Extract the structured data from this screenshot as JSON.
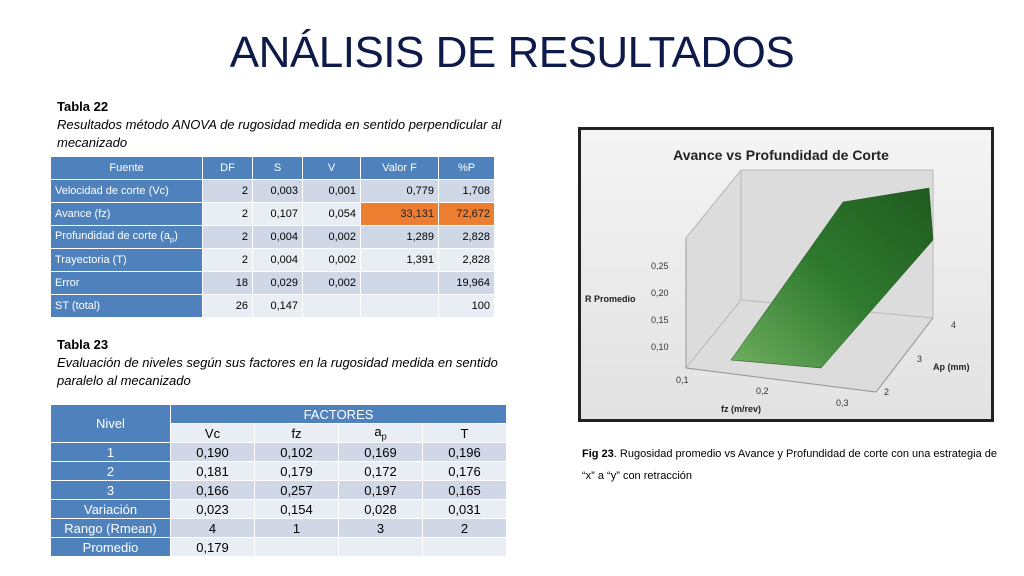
{
  "title": "ANÁLISIS DE RESULTADOS",
  "table22": {
    "label": "Tabla 22",
    "description": "Resultados método ANOVA de rugosidad medida en sentido perpendicular al mecanizado",
    "headers": [
      "Fuente",
      "DF",
      "S",
      "V",
      "Valor F",
      "%P"
    ],
    "rows": [
      {
        "fuente": "Velocidad de corte (Vc)",
        "df": "2",
        "s": "0,003",
        "v": "0,001",
        "f": "0,779",
        "p": "1,708"
      },
      {
        "fuente": "Avance (fz)",
        "df": "2",
        "s": "0,107",
        "v": "0,054",
        "f": "33,131",
        "p": "72,672"
      },
      {
        "fuente_pre": "Profundidad de corte (a",
        "fuente_sub": "p",
        "fuente_post": ")",
        "df": "2",
        "s": "0,004",
        "v": "0,002",
        "f": "1,289",
        "p": "2,828"
      },
      {
        "fuente": "Trayectoria (T)",
        "df": "2",
        "s": "0,004",
        "v": "0,002",
        "f": "1,391",
        "p": "2,828"
      },
      {
        "fuente": "Error",
        "df": "18",
        "s": "0,029",
        "v": "0,002",
        "f": "",
        "p": "19,964"
      },
      {
        "fuente": "ST (total)",
        "df": "26",
        "s": "0,147",
        "v": "",
        "f": "",
        "p": "100"
      }
    ],
    "highlight_color": "#ed7d31"
  },
  "table23": {
    "label": "Tabla 23",
    "description": "Evaluación de niveles según sus factores en la rugosidad medida en sentido paralelo al mecanizado",
    "nivel_header": "Nivel",
    "factores_header": "FACTORES",
    "sub_headers": {
      "vc": "Vc",
      "fz": "fz",
      "ap_pre": "a",
      "ap_sub": "p",
      "t": "T"
    },
    "rows": [
      {
        "nivel": "1",
        "vc": "0,190",
        "fz": "0,102",
        "ap": "0,169",
        "t": "0,196"
      },
      {
        "nivel": "2",
        "vc": "0,181",
        "fz": "0,179",
        "ap": "0,172",
        "t": "0,176"
      },
      {
        "nivel": "3",
        "vc": "0,166",
        "fz": "0,257",
        "ap": "0,197",
        "t": "0,165"
      },
      {
        "nivel": "Variación",
        "vc": "0,023",
        "fz": "0,154",
        "ap": "0,028",
        "t": "0,031"
      },
      {
        "nivel": "Rango (Rmean)",
        "vc": "4",
        "fz": "1",
        "ap": "3",
        "t": "2"
      },
      {
        "nivel": "Promedio",
        "vc": "0,179",
        "fz": "",
        "ap": "",
        "t": ""
      }
    ]
  },
  "figure": {
    "title": "Avance vs Profundidad de Corte",
    "z_label": "R Promedio",
    "x_label": "fz (m/rev)",
    "y_label": "Ap (mm)",
    "z_ticks": [
      "0,25",
      "0,20",
      "0,15",
      "0,10"
    ],
    "x_ticks": [
      "0,1",
      "0,2",
      "0,3"
    ],
    "y_ticks": [
      "2",
      "3",
      "4"
    ],
    "surface_color": "#3a7a3a"
  },
  "fig_caption": {
    "label": "Fig 23",
    "text": ". Rugosidad promedio vs Avance y Profundidad de corte con una estrategia de “x” a “y” con retracción"
  }
}
